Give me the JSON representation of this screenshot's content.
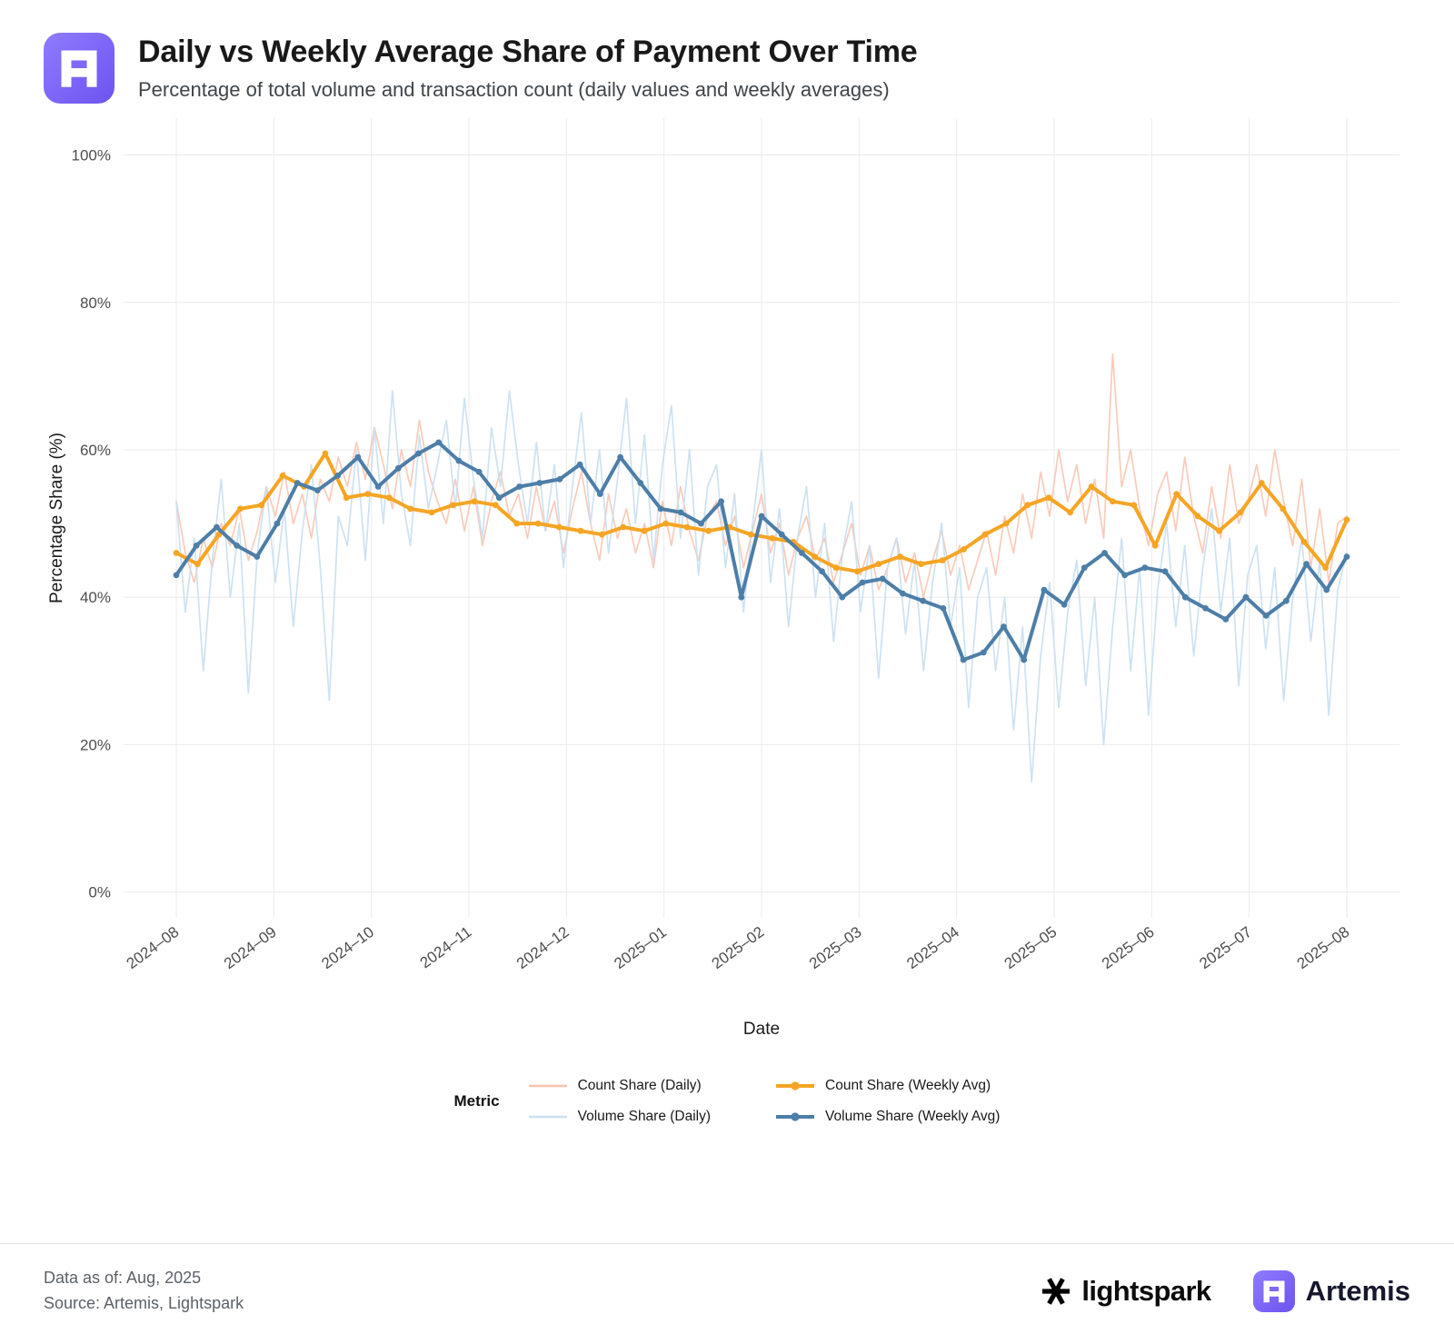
{
  "header": {
    "title": "Daily vs Weekly Average Share of Payment Over Time",
    "subtitle": "Percentage of total volume and transaction count (daily values and weekly averages)"
  },
  "chart_data": {
    "type": "line",
    "title": "Daily vs Weekly Average Share of Payment Over Time",
    "xlabel": "Date",
    "ylabel": "Percentage Share (%)",
    "x_ticks": [
      "2024–08",
      "2024–09",
      "2024–10",
      "2024–11",
      "2024–12",
      "2025–01",
      "2025–02",
      "2025–03",
      "2025–04",
      "2025–05",
      "2025–06",
      "2025–07",
      "2025–08"
    ],
    "y_ticks": [
      0,
      20,
      40,
      60,
      80,
      100
    ],
    "y_tick_suffix": "%",
    "y_domain": [
      -3.5,
      105
    ],
    "grid": true,
    "grid_color": "#ebebeb",
    "tick_color": "#4d4d4d",
    "axis_label_color": "#1a1a1a",
    "legend_position": "bottom",
    "series": [
      {
        "name": "Count Share (Daily)",
        "color": "#f8c2ae",
        "width": 1.7,
        "opacity": 0.85,
        "dots": false,
        "values": [
          53,
          46,
          42,
          48,
          44,
          50,
          47,
          52,
          45,
          49,
          55,
          51,
          57,
          50,
          54,
          48,
          56,
          53,
          59,
          55,
          61,
          56,
          63,
          58,
          52,
          60,
          55,
          64,
          57,
          53,
          50,
          56,
          49,
          55,
          47,
          53,
          57,
          51,
          54,
          48,
          55,
          49,
          53,
          46,
          52,
          57,
          50,
          45,
          54,
          48,
          52,
          46,
          50,
          44,
          53,
          47,
          55,
          49,
          45,
          51,
          53,
          47,
          51,
          44,
          49,
          54,
          46,
          50,
          43,
          48,
          51,
          45,
          48,
          42,
          46,
          50,
          43,
          47,
          41,
          44,
          48,
          42,
          46,
          40,
          45,
          49,
          43,
          47,
          41,
          45,
          49,
          43,
          51,
          46,
          54,
          48,
          57,
          51,
          60,
          53,
          58,
          50,
          56,
          48,
          73,
          55,
          60,
          52,
          47,
          54,
          57,
          49,
          59,
          51,
          46,
          55,
          48,
          58,
          50,
          53,
          58,
          51,
          60,
          53,
          47,
          56,
          44,
          52,
          42,
          50,
          51
        ]
      },
      {
        "name": "Volume Share (Daily)",
        "color": "#c8dff0",
        "width": 1.7,
        "opacity": 0.9,
        "dots": false,
        "values": [
          53,
          38,
          48,
          30,
          45,
          56,
          40,
          50,
          27,
          46,
          55,
          42,
          52,
          36,
          49,
          58,
          44,
          26,
          51,
          47,
          60,
          45,
          63,
          50,
          68,
          54,
          47,
          62,
          52,
          58,
          64,
          52,
          67,
          56,
          48,
          63,
          55,
          68,
          58,
          50,
          61,
          49,
          58,
          44,
          55,
          65,
          50,
          60,
          46,
          56,
          67,
          50,
          62,
          45,
          58,
          66,
          48,
          60,
          43,
          55,
          58,
          44,
          54,
          38,
          50,
          60,
          42,
          52,
          36,
          48,
          55,
          40,
          50,
          34,
          46,
          53,
          38,
          47,
          29,
          44,
          48,
          35,
          45,
          30,
          42,
          50,
          36,
          44,
          25,
          40,
          44,
          30,
          40,
          22,
          36,
          15,
          32,
          42,
          25,
          38,
          45,
          28,
          40,
          20,
          36,
          48,
          30,
          44,
          24,
          41,
          50,
          36,
          47,
          32,
          44,
          52,
          38,
          48,
          28,
          43,
          47,
          33,
          44,
          26,
          40,
          48,
          34,
          45,
          24,
          41,
          46
        ]
      },
      {
        "name": "Count Share (Weekly Avg)",
        "color": "#f5a524",
        "width": 4,
        "opacity": 1,
        "dots": true,
        "values": [
          46,
          44.5,
          48.5,
          52,
          52.5,
          56.5,
          55,
          59.5,
          53.5,
          54,
          53.5,
          52,
          51.5,
          52.5,
          53,
          52.5,
          50,
          50,
          49.5,
          49,
          48.5,
          49.5,
          49,
          50,
          49.5,
          49,
          49.5,
          48.5,
          48,
          47.5,
          45.5,
          44,
          43.5,
          44.5,
          45.5,
          44.5,
          45,
          46.5,
          48.5,
          50,
          52.5,
          53.5,
          51.5,
          55,
          53,
          52.5,
          47,
          54,
          51,
          49,
          51.5,
          55.5,
          52,
          47.5,
          44,
          50.5
        ]
      },
      {
        "name": "Volume Share (Weekly Avg)",
        "color": "#4d7ea8",
        "width": 4,
        "opacity": 1,
        "dots": true,
        "values": [
          43,
          47,
          49.5,
          47,
          45.5,
          50,
          55.5,
          54.5,
          56.5,
          59,
          55,
          57.5,
          59.5,
          61,
          58.5,
          57,
          53.5,
          55,
          55.5,
          56,
          58,
          54,
          59,
          55.5,
          52,
          51.5,
          50,
          53,
          40,
          51,
          48.5,
          46,
          43.5,
          40,
          42,
          42.5,
          40.5,
          39.5,
          38.5,
          31.5,
          32.5,
          36,
          31.5,
          41,
          39,
          44,
          46,
          43,
          44,
          43.5,
          40,
          38.5,
          37,
          40,
          37.5,
          39.5,
          44.5,
          41,
          45.5
        ]
      }
    ]
  },
  "legend": {
    "title": "Metric",
    "entries": [
      {
        "label": "Count Share (Daily)",
        "series": 0
      },
      {
        "label": "Count Share (Weekly Avg)",
        "series": 2
      },
      {
        "label": "Volume Share (Daily)",
        "series": 1
      },
      {
        "label": "Volume Share (Weekly Avg)",
        "series": 3
      }
    ]
  },
  "footer": {
    "data_as_of": "Data as of: Aug, 2025",
    "source": "Source: Artemis, Lightspark",
    "lightspark_wordmark": "lightspark",
    "artemis_wordmark": "Artemis"
  },
  "brand": {
    "accent_purple": "#7b5cf5",
    "logo_gradient_start": "#8f7bff",
    "logo_gradient_end": "#6d53f0"
  }
}
